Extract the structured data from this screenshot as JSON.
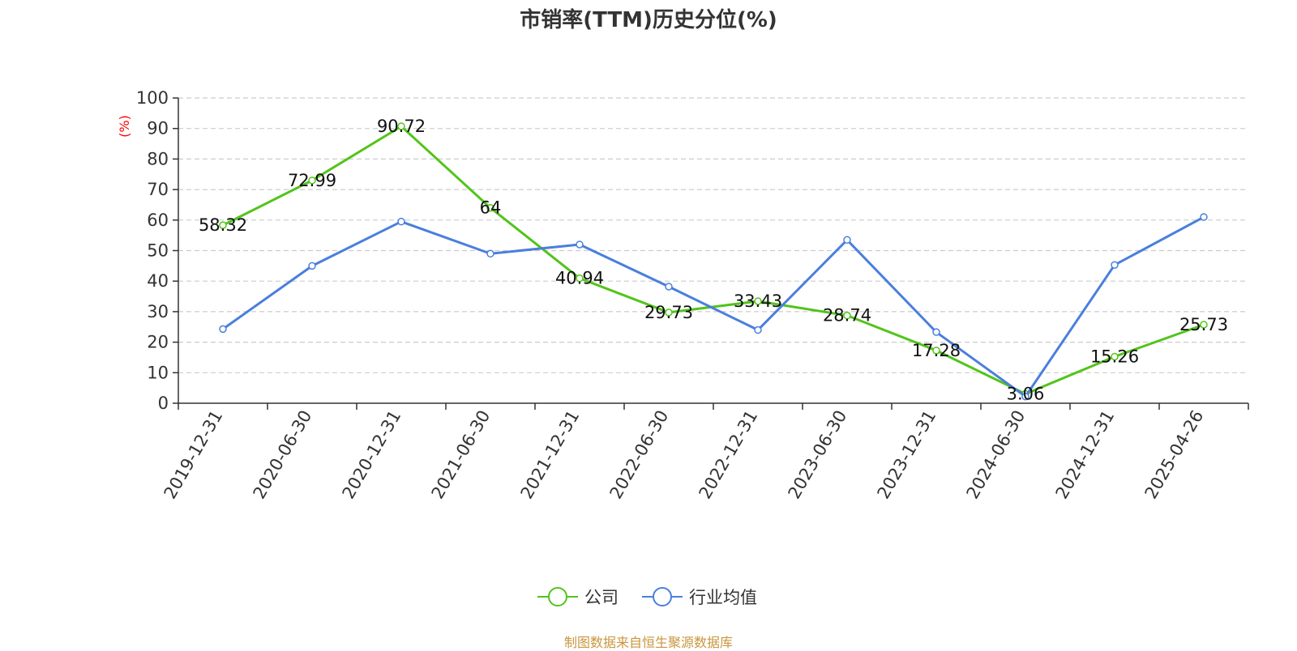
{
  "chart_data": {
    "type": "line",
    "title": "市销率(TTM)历史分位(%)",
    "ylabel": "(%)",
    "xlabel": "",
    "ylim": [
      0,
      100
    ],
    "yticks": [
      0,
      10,
      20,
      30,
      40,
      50,
      60,
      70,
      80,
      90,
      100
    ],
    "grid": "horizontal-dashed",
    "legend_position": "bottom-center",
    "categories": [
      "2019-12-31",
      "2020-06-30",
      "2020-12-31",
      "2021-06-30",
      "2021-12-31",
      "2022-06-30",
      "2022-12-31",
      "2023-06-30",
      "2023-12-31",
      "2024-06-30",
      "2024-12-31",
      "2025-04-26"
    ],
    "series": [
      {
        "name": "公司",
        "color": "#52c41a",
        "show_labels": true,
        "values": [
          58.32,
          72.99,
          90.72,
          64,
          40.94,
          29.73,
          33.43,
          28.74,
          17.28,
          3.06,
          15.26,
          25.73
        ]
      },
      {
        "name": "行业均值",
        "color": "#4a7fdc",
        "show_labels": false,
        "values": [
          24.3,
          45,
          59.5,
          49,
          52,
          38.2,
          24,
          53.5,
          23.3,
          2.2,
          45.3,
          61
        ]
      }
    ]
  },
  "source_note": "制图数据来自恒生聚源数据库"
}
